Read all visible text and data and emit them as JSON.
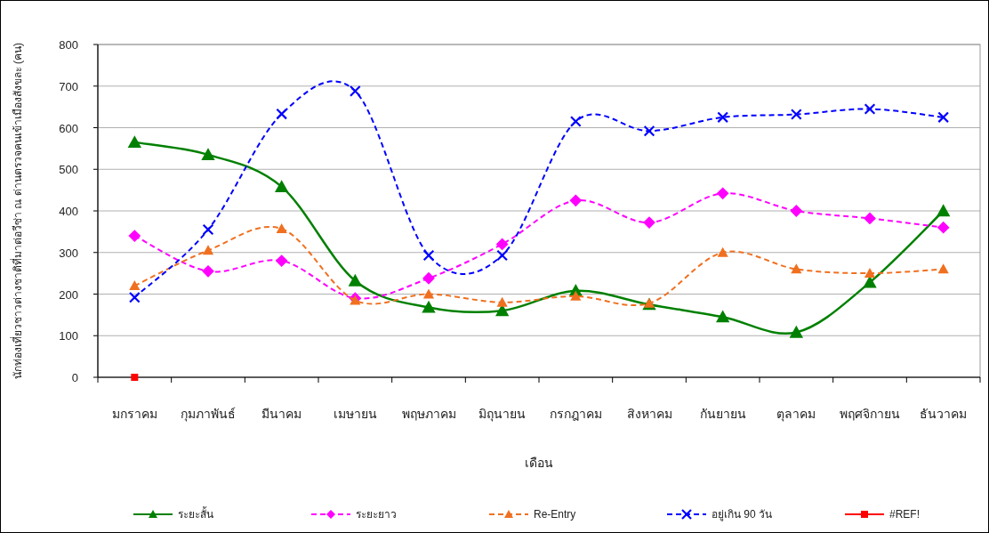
{
  "chart_data": {
    "type": "line",
    "ylabel": "นักท่องเที่ยวชาวต่างชาติที่มาต่อวีซ่า ณ ด่านตรวจคนเข้าเมืองสังขละ (คน)",
    "xlabel": "เดือน",
    "categories": [
      "มกราคม",
      "กุมภาพันธ์",
      "มีนาคม",
      "เมษายน",
      "พฤษภาคม",
      "มิถุนายน",
      "กรกฎาคม",
      "สิงหาคม",
      "กันยายน",
      "ตุลาคม",
      "พฤศจิกายน",
      "ธันวาคม"
    ],
    "ylim": [
      0,
      800
    ],
    "yticks": [
      0,
      100,
      200,
      300,
      400,
      500,
      600,
      700,
      800
    ],
    "grid": "y",
    "legend": "bottom",
    "series": [
      {
        "name": "ระยะสั้น",
        "color": "#008000",
        "marker": "triangle",
        "line_style": "solid",
        "values": [
          565,
          535,
          458,
          232,
          168,
          160,
          208,
          175,
          145,
          108,
          228,
          400
        ]
      },
      {
        "name": "ระยะยาว",
        "color": "#ff00ff",
        "marker": "diamond",
        "line_style": "dashed",
        "values": [
          340,
          255,
          280,
          190,
          238,
          320,
          425,
          372,
          442,
          400,
          382,
          360
        ]
      },
      {
        "name": "Re-Entry",
        "color": "#f07020",
        "marker": "triangle",
        "line_style": "dashed",
        "values": [
          220,
          305,
          357,
          185,
          200,
          180,
          195,
          178,
          300,
          260,
          250,
          260
        ]
      },
      {
        "name": "อยู่เกิน 90 วัน",
        "color": "#0000ff",
        "marker": "cross",
        "line_style": "dashed",
        "values": [
          192,
          355,
          633,
          688,
          293,
          293,
          615,
          592,
          625,
          632,
          645,
          625
        ]
      },
      {
        "name": "#REF!",
        "color": "#ff0000",
        "marker": "square",
        "line_style": "solid",
        "values": [
          0,
          null,
          null,
          null,
          null,
          null,
          null,
          null,
          null,
          null,
          null,
          null
        ]
      }
    ]
  }
}
